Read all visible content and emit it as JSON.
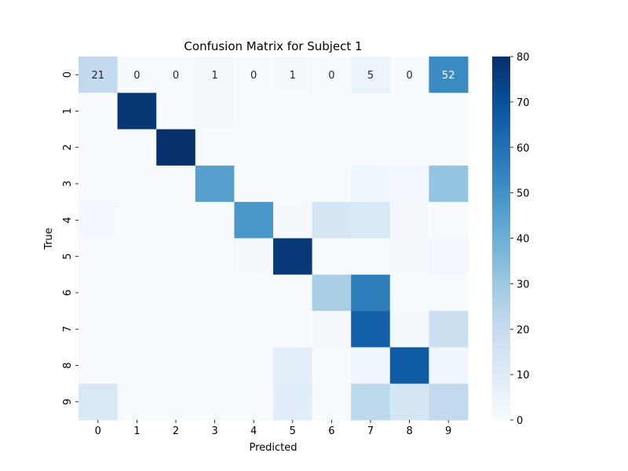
{
  "chart_data": {
    "type": "heatmap",
    "title": "Confusion Matrix for Subject 1",
    "xlabel": "Predicted",
    "ylabel": "True",
    "x_categories": [
      "0",
      "1",
      "2",
      "3",
      "4",
      "5",
      "6",
      "7",
      "8",
      "9"
    ],
    "y_categories": [
      "0",
      "1",
      "2",
      "3",
      "4",
      "5",
      "6",
      "7",
      "8",
      "9"
    ],
    "matrix": [
      [
        21,
        0,
        0,
        1,
        0,
        1,
        0,
        5,
        0,
        52
      ],
      [
        0,
        78,
        0,
        1,
        0,
        0,
        0,
        0,
        0,
        0
      ],
      [
        0,
        0,
        80,
        0,
        0,
        0,
        0,
        0,
        0,
        0
      ],
      [
        0,
        0,
        0,
        45,
        0,
        0,
        0,
        3,
        2,
        32
      ],
      [
        2,
        0,
        0,
        0,
        48,
        1,
        14,
        12,
        1,
        0
      ],
      [
        0,
        0,
        0,
        0,
        1,
        77,
        0,
        0,
        1,
        2
      ],
      [
        0,
        0,
        0,
        0,
        0,
        0,
        27,
        56,
        0,
        0
      ],
      [
        0,
        0,
        0,
        0,
        0,
        0,
        1,
        65,
        1,
        17
      ],
      [
        0,
        0,
        0,
        0,
        0,
        8,
        0,
        3,
        67,
        3
      ],
      [
        12,
        0,
        0,
        0,
        0,
        9,
        0,
        22,
        14,
        21
      ]
    ],
    "annotated_row": 0,
    "colorbar": {
      "min": 0,
      "max": 80,
      "ticks": [
        0,
        10,
        20,
        30,
        40,
        50,
        60,
        70,
        80
      ]
    },
    "colormap": "Blues"
  }
}
